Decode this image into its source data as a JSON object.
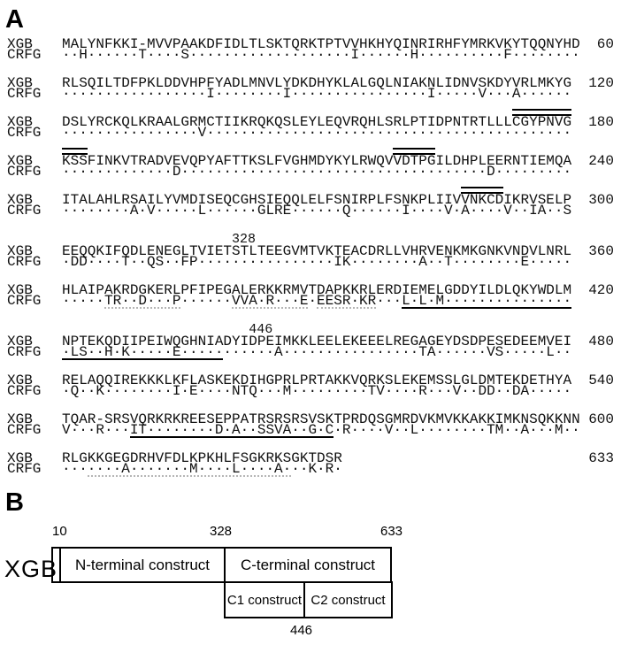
{
  "figure": {
    "panelA": {
      "label": "A",
      "row_names": [
        "XGB",
        "CRFG"
      ],
      "blocks": [
        {
          "xgb": "MALYNFKKI-MVVPAAKDFIDLTLSKTQRKTPTVVHKHYQINRIRHFYMRKVKYTQQNYHD",
          "crfg": "··H······T····S···················I······H··········F········",
          "num": "60"
        },
        {
          "xgb": "RLSQILTDFPKLDDVHPFYADLMNVLYDKDHYKLALGQLNIAKNLIDNVSKDYVRLMKYG",
          "crfg": "·················I········I················I·····V···A······",
          "num": "120"
        },
        {
          "xgb": "DSLYRCKQLKRAALGRMCTIIKRQKQSLEYLEQVRQHLSRLPTIDPNTRTLLLCGYPNVG",
          "crfg": "················V···········································",
          "num": "180",
          "overlines": [
            {
              "start": 54,
              "end": 60
            }
          ]
        },
        {
          "xgb": "KSSFINKVTRADVEVQPYAFTTKSLFVGHMDYKYLRWQVVDTPGILDHPLEERNTIEMQA",
          "crfg": "·············D····································D·········",
          "num": "240",
          "overlines": [
            {
              "start": 1,
              "end": 3
            },
            {
              "start": 40,
              "end": 44
            }
          ]
        },
        {
          "xgb": "ITALAHLRSAILYVMDISEQCGHSIEQQLELFSNIRPLFSNKPLIIVVNKCDIKRVSELP",
          "crfg": "········A·V·····L······GLRE······Q······I····V·A····V··IA··S",
          "num": "300",
          "overlines": [
            {
              "start": 48,
              "end": 52
            }
          ]
        },
        {
          "xgb": "EEQQKIFQDLENEGLTVIETSTLTEEGVMTVKTEACDRLLVHRVENKMKGNKVNDVLNRL",
          "crfg": "·DD····T··QS··FP················IK········A··T········E·····",
          "num": "360",
          "label": {
            "text": "328",
            "char": 21
          }
        },
        {
          "xgb": "HLAIPAKRDGKERLPFIPEGALERKKRMVTDAPKKRLERDIEMELGDDYILDLQKYWDLM",
          "crfg": "·····TR··D···P······VVA·R···E·EESR·KR···L·L·M···············",
          "num": "420",
          "underlines": [
            {
              "start": 41,
              "end": 60,
              "style": "solid"
            },
            {
              "start": 6,
              "end": 14,
              "style": "dotted"
            },
            {
              "start": 21,
              "end": 29,
              "style": "dotted"
            },
            {
              "start": 31,
              "end": 37,
              "style": "dotted"
            }
          ]
        },
        {
          "xgb": "NPTEKQDIIPEIWQGHNIADYIDPEIMKKLEELEKEEELREGAGEYDSDPESEDEEMVEI",
          "crfg": "·LS··H·K·····E···········A················TA······VS·····L··",
          "num": "480",
          "label": {
            "text": "446",
            "char": 23
          },
          "underlines": [
            {
              "start": 1,
              "end": 19,
              "style": "solid"
            }
          ]
        },
        {
          "xgb": "RELAQQIREKKKLKFLASKEKDIHGPRLPRTAKKVQRKSLEKEMSSLGLDMTEKDETHYA",
          "crfg": "·Q··K········I·E····NTQ···M·········TV····R···V··DD··DA·····",
          "num": "540"
        },
        {
          "xgb": "TQAR-SRSVQRKRKREESEPPATRSRSRSVSKTPRDQSGMRDVKMVKKAKKIMKNSQKKNN",
          "crfg": "V···R···IT········D·A··SSVA··G·C·R····V··L········TM··A···M··",
          "num": "600",
          "underlines": [
            {
              "start": 9,
              "end": 32,
              "style": "solid"
            }
          ]
        },
        {
          "xgb": "RLGKKGEGDRHVFDLKPKHLFSGKRKSGKTDSR",
          "crfg": "·······A·······M····L····A···K·R·",
          "num": "633",
          "underlines": [
            {
              "start": 4,
              "end": 27,
              "style": "dotted"
            }
          ]
        }
      ]
    },
    "panelB": {
      "label": "B",
      "protein_label": "XGB",
      "scale_markers": [
        "10",
        "328",
        "633"
      ],
      "boundary_marker": "446",
      "boxes": {
        "n": "N-terminal construct",
        "c": "C-terminal construct",
        "c1": "C1 construct",
        "c2": "C2 construct"
      }
    }
  }
}
